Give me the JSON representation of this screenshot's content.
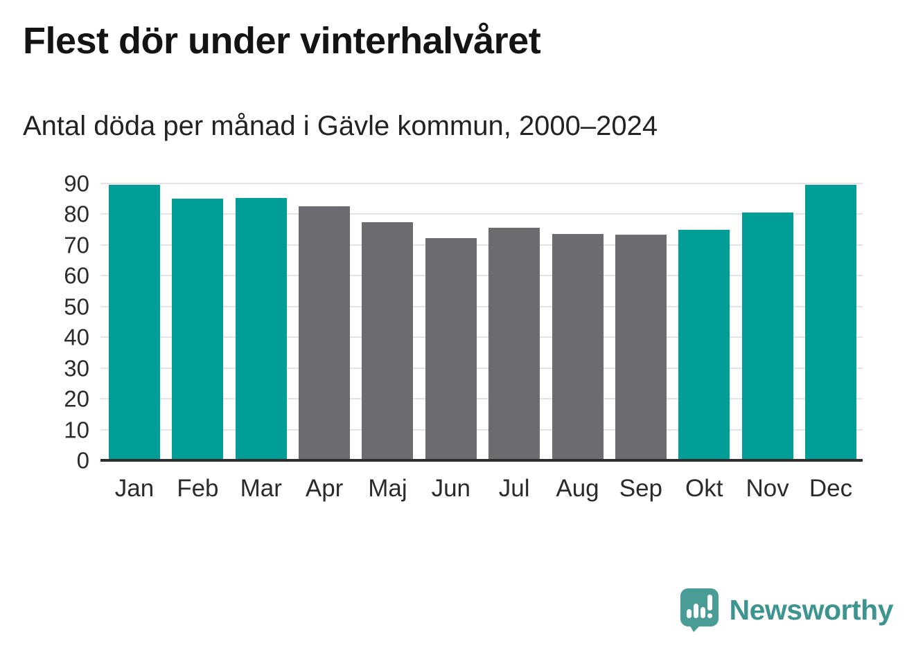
{
  "header": {
    "title": "Flest dör under vinterhalvåret",
    "subtitle": "Antal döda per månad i Gävle kommun, 2000–2024"
  },
  "chart_data": {
    "type": "bar",
    "title": "Flest dör under vinterhalvåret",
    "subtitle": "Antal döda per månad i Gävle kommun, 2000–2024",
    "categories": [
      "Jan",
      "Feb",
      "Mar",
      "Apr",
      "Maj",
      "Jun",
      "Jul",
      "Aug",
      "Sep",
      "Okt",
      "Nov",
      "Dec"
    ],
    "values": [
      89.5,
      85.0,
      85.3,
      82.6,
      77.3,
      72.3,
      75.5,
      73.6,
      73.3,
      75.0,
      80.5,
      89.5
    ],
    "bar_colors": [
      "#009e96",
      "#009e96",
      "#009e96",
      "#6b6b70",
      "#6b6b70",
      "#6b6b70",
      "#6b6b70",
      "#6b6b70",
      "#6b6b70",
      "#009e96",
      "#009e96",
      "#009e96"
    ],
    "color_meaning": {
      "winter_half_year_highlight": "#009e96",
      "summer_half_year": "#6b6b70"
    },
    "xlabel": "",
    "ylabel": "",
    "ylim": [
      0,
      90
    ],
    "yticks": [
      0,
      10,
      20,
      30,
      40,
      50,
      60,
      70,
      80,
      90
    ],
    "grid": true,
    "legend_position": "none"
  },
  "footer": {
    "brand": "Newsworthy",
    "brand_color": "#3e948e",
    "logo_color": "#4a9c96",
    "logo_icon": "bar-chart-speech-bubble"
  }
}
